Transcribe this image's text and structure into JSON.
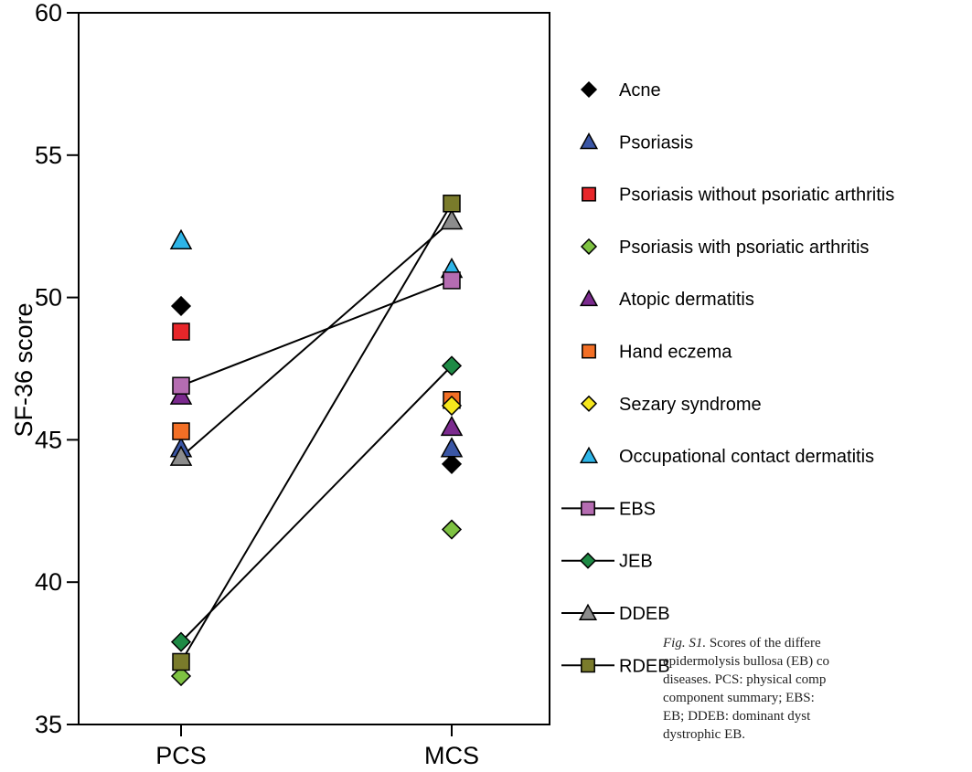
{
  "chart_data": {
    "type": "scatter",
    "categories": [
      "PCS",
      "MCS"
    ],
    "ylabel": "SF-36 score",
    "ylim": [
      35,
      60
    ],
    "yticks": [
      35,
      40,
      45,
      50,
      55,
      60
    ],
    "grid": false,
    "legend_placement": "right",
    "series": [
      {
        "name": "Acne",
        "marker": "diamond",
        "color": "#000000",
        "connected": false,
        "values": [
          49.7,
          44.15
        ]
      },
      {
        "name": "Psoriasis",
        "marker": "triangle",
        "color": "#3a56a5",
        "connected": false,
        "values": [
          44.7,
          44.7
        ]
      },
      {
        "name": "Psoriasis without psoriatic arthritis",
        "marker": "square",
        "color": "#e8262a",
        "connected": false,
        "values": [
          48.8,
          null
        ]
      },
      {
        "name": "Psoriasis with psoriatic arthritis",
        "marker": "diamond",
        "color": "#7ec242",
        "connected": false,
        "values": [
          36.7,
          41.85
        ]
      },
      {
        "name": "Atopic dermatitis",
        "marker": "triangle",
        "color": "#7b2a8e",
        "connected": false,
        "values": [
          46.55,
          45.45
        ]
      },
      {
        "name": "Hand eczema",
        "marker": "square",
        "color": "#f36f25",
        "connected": false,
        "values": [
          45.3,
          46.4
        ]
      },
      {
        "name": "Sezary syndrome",
        "marker": "diamond",
        "color": "#f6e71d",
        "connected": false,
        "values": [
          null,
          46.2
        ]
      },
      {
        "name": "Occupational contact dermatitis",
        "marker": "triangle",
        "color": "#2db5e8",
        "connected": false,
        "values": [
          52.0,
          51.0
        ]
      },
      {
        "name": "EBS",
        "marker": "square",
        "color": "#b56cb1",
        "connected": true,
        "values": [
          46.9,
          50.6
        ]
      },
      {
        "name": "JEB",
        "marker": "diamond",
        "color": "#1e8a45",
        "connected": true,
        "values": [
          37.9,
          47.6
        ]
      },
      {
        "name": "DDEB",
        "marker": "triangle",
        "color": "#8c8c8c",
        "connected": true,
        "values": [
          44.4,
          52.7
        ]
      },
      {
        "name": "RDEB",
        "marker": "square",
        "color": "#7a7b2b",
        "connected": true,
        "values": [
          37.2,
          53.3
        ]
      }
    ]
  },
  "caption": {
    "label": "Fig. S1.",
    "text": " Scores of the differe\nepidermolysis bullosa (EB) co\ndiseases. PCS: physical comp\ncomponent summary; EBS:\nEB; DDEB: dominant dyst\ndystrophic EB."
  }
}
